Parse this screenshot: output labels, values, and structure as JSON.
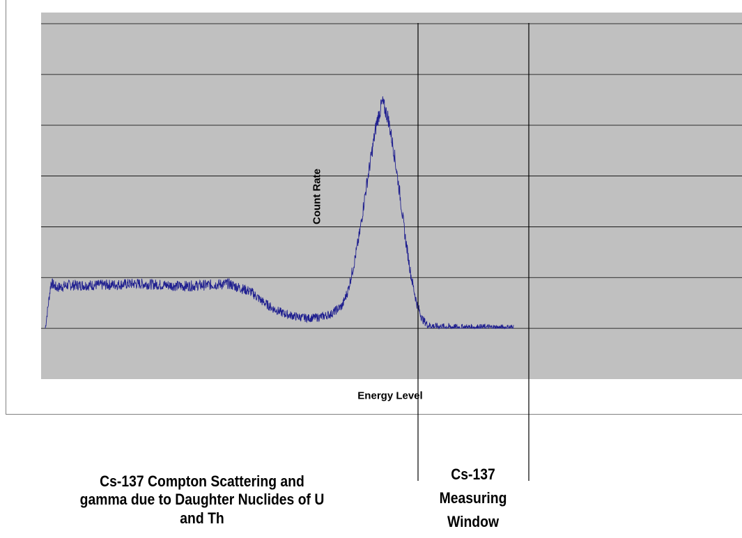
{
  "chart_data": {
    "type": "line",
    "title": "",
    "xlabel": "Energy Level",
    "ylabel": "Count Rate",
    "xlim": [
      0,
      1000
    ],
    "ylim": [
      -1,
      6
    ],
    "grid": true,
    "series": [
      {
        "color": "#1f1f8f",
        "x": [
          0,
          10,
          20,
          40,
          80,
          120,
          160,
          200,
          240,
          280,
          320,
          360,
          380,
          400,
          420,
          440,
          460,
          480,
          500,
          520,
          530,
          540,
          550,
          560,
          570,
          580,
          590,
          600,
          610,
          620,
          630,
          640,
          650,
          660,
          670,
          680,
          700,
          720,
          740,
          770,
          800,
          820
        ],
        "values": [
          0,
          0.9,
          0.8,
          0.85,
          0.85,
          0.86,
          0.88,
          0.86,
          0.83,
          0.85,
          0.88,
          0.72,
          0.53,
          0.38,
          0.28,
          0.23,
          0.2,
          0.22,
          0.28,
          0.45,
          0.75,
          1.25,
          1.85,
          2.65,
          3.35,
          4.05,
          4.45,
          4.15,
          3.5,
          2.7,
          1.8,
          1.05,
          0.5,
          0.18,
          0.06,
          0.04,
          0.03,
          0.02,
          0.02,
          0.02,
          0.01,
          0.02
        ]
      }
    ]
  },
  "annotations": {
    "compton_label": [
      "Cs-137 Compton Scattering and",
      "gamma due to Daughter Nuclides of U",
      "and Th"
    ],
    "window_label": [
      "Cs-137",
      "Measuring",
      "Window"
    ]
  }
}
